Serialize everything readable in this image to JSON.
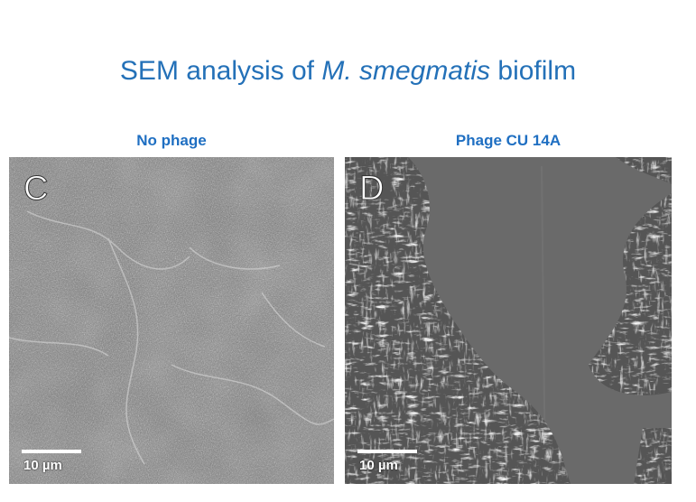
{
  "title": {
    "prefix": "SEM analysis of ",
    "species": "M. smegmatis",
    "suffix": " biofilm"
  },
  "panels": [
    {
      "caption": "No phage",
      "letter": "C",
      "scale_label": "10 µm"
    },
    {
      "caption": "Phage CU 14A",
      "letter": "D",
      "scale_label": "10 µm"
    }
  ]
}
